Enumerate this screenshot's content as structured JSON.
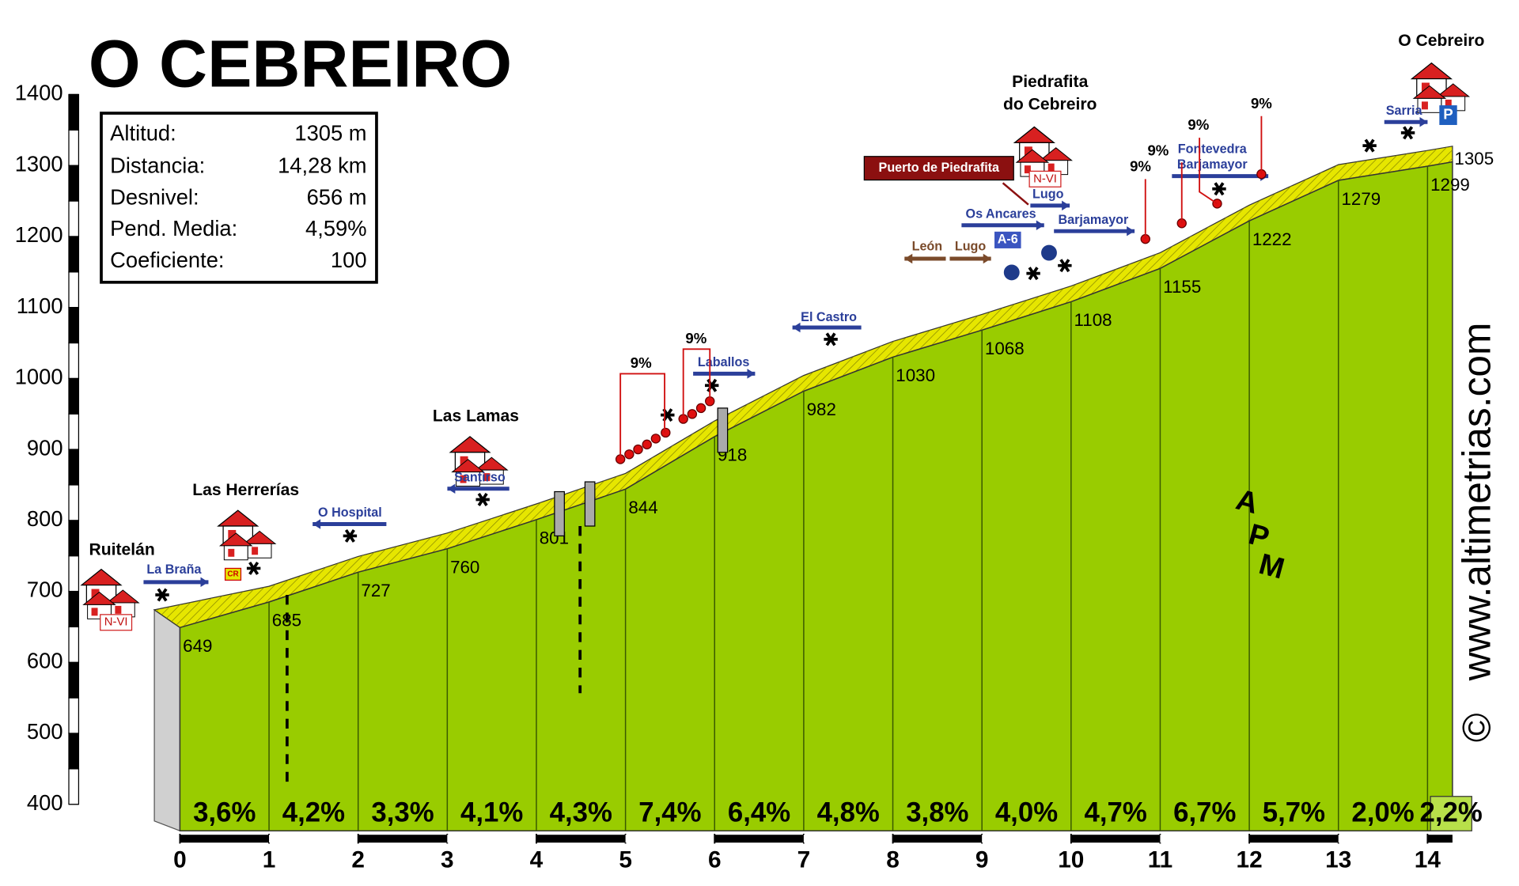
{
  "chart_data": {
    "type": "profile",
    "title": "O CEBREIRO",
    "stats": [
      [
        "Altitud:",
        "1305 m"
      ],
      [
        "Distancia:",
        "14,28 km"
      ],
      [
        "Desnivel:",
        "656 m"
      ],
      [
        "Pend. Media:",
        "4,59%"
      ],
      [
        "Coeficiente:",
        "100"
      ]
    ],
    "x": [
      0,
      1,
      2,
      3,
      4,
      5,
      6,
      7,
      8,
      9,
      10,
      11,
      12,
      13,
      14,
      14.28
    ],
    "values": [
      649,
      685,
      727,
      760,
      801,
      844,
      918,
      982,
      1030,
      1068,
      1108,
      1155,
      1222,
      1279,
      1299,
      1305
    ],
    "gradients": {
      "values": [
        3.6,
        4.2,
        3.3,
        4.1,
        4.3,
        7.4,
        6.4,
        4.8,
        3.8,
        4.0,
        4.7,
        6.7,
        5.7,
        2.0,
        2.2
      ],
      "value_labels": [
        "3,6%",
        "4,2%",
        "3,3%",
        "4,1%",
        "4,3%",
        "7,4%",
        "6,4%",
        "4,8%",
        "3,8%",
        "4,0%",
        "4,7%",
        "6,7%",
        "5,7%",
        "2,0%",
        "2,2%"
      ]
    },
    "xlim": [
      0,
      14.28
    ],
    "xticks": [
      0,
      1,
      2,
      3,
      4,
      5,
      6,
      7,
      8,
      9,
      10,
      11,
      12,
      13,
      14
    ],
    "ylim": [
      400,
      1400
    ],
    "yticks": [
      400,
      500,
      600,
      700,
      800,
      900,
      1000,
      1100,
      1200,
      1300,
      1400
    ],
    "color": "#99cc00",
    "band_color": "#e6e600",
    "places": [
      [
        "Ruitelán"
      ],
      [
        "Las Herrerías"
      ],
      [
        "Las Lamas"
      ],
      [
        "Piedrafita",
        "do Cebreiro"
      ],
      [
        "O Cebreiro"
      ]
    ],
    "signs": [
      "La Braña",
      "O Hospital",
      "Santirso",
      "El Castro",
      "Laballos",
      "León",
      "Lugo",
      "A-6",
      "Os Ancares",
      "Lugo",
      "Barjamayor",
      "Fontevedra",
      "Barjamayor",
      "Sarria",
      "N-VI",
      "N-VI",
      "Puerto de Piedrafita",
      "CR",
      "P"
    ],
    "steep_labels": [
      "9%",
      "9%",
      "9%",
      "9%",
      "9%",
      "9%"
    ],
    "logo": [
      "A",
      "P",
      "M"
    ],
    "watermark": "www.altimetrias.com",
    "copyright": "©"
  }
}
